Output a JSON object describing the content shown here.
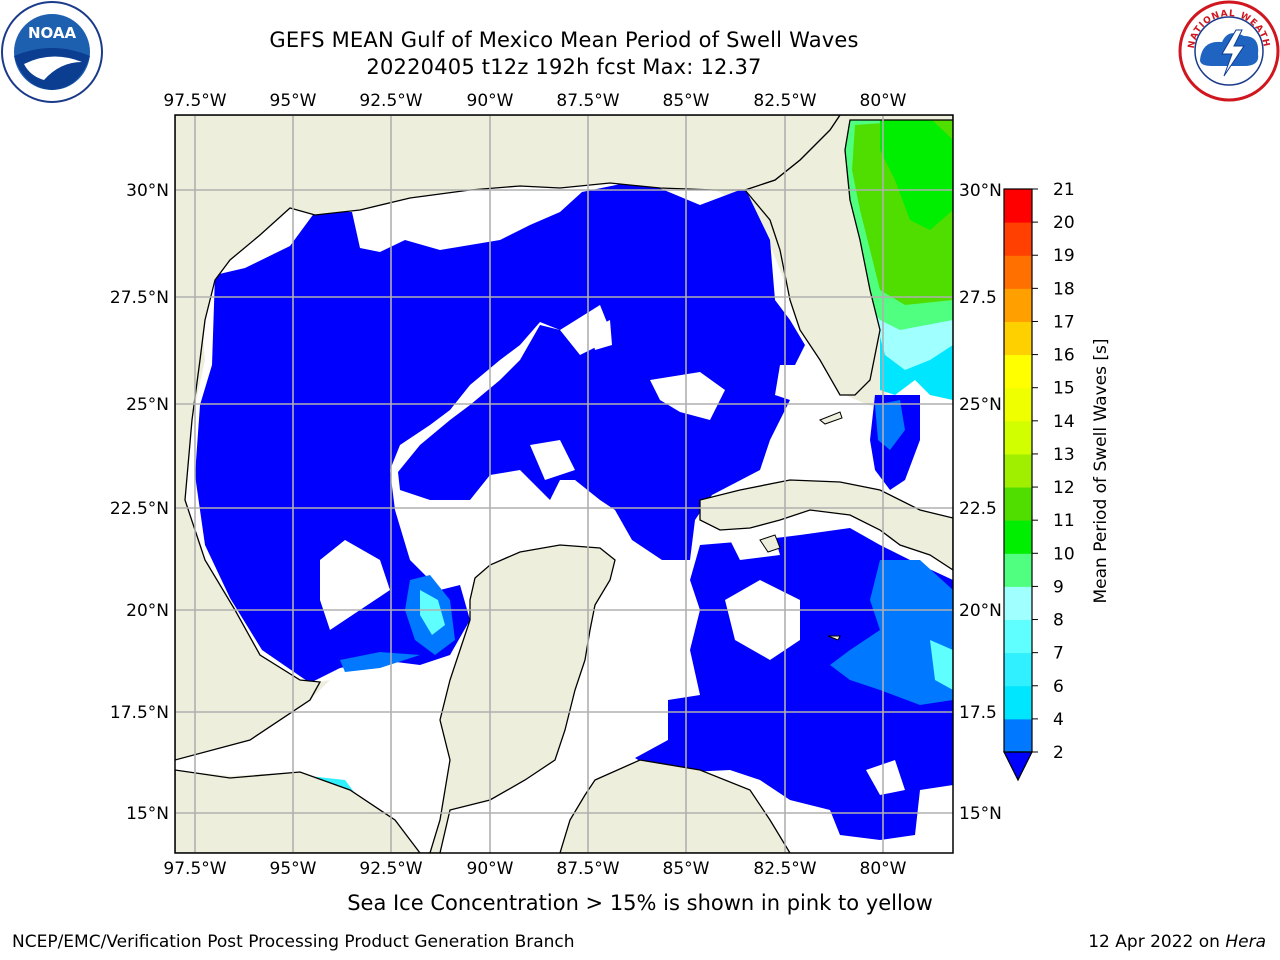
{
  "header": {
    "title_line1": "GEFS MEAN Gulf of Mexico Mean Period of Swell Waves",
    "title_line2": "20220405 t12z 192h fcst   Max: 12.37"
  },
  "logos": {
    "left": {
      "name": "noaa-logo",
      "text": "NOAA",
      "ring_text": "NATIONAL OCEANIC AND ATMOSPHERIC ADMINISTRATION · U.S. DEPARTMENT OF COMMERCE"
    },
    "right": {
      "name": "nws-logo",
      "ring_text": "NATIONAL WEATHER SERVICE"
    }
  },
  "map": {
    "region": "Gulf of Mexico",
    "lon_labels": [
      "97.5°W",
      "95°W",
      "92.5°W",
      "90°W",
      "87.5°W",
      "85°W",
      "82.5°W",
      "80°W"
    ],
    "lat_labels": [
      "30°N",
      "27.5°N",
      "25°N",
      "22.5°N",
      "20°N",
      "17.5°N",
      "15°N"
    ],
    "lat_labels_right": [
      "30°N",
      "27.5",
      "25°N",
      "22.5",
      "20°N",
      "17.5",
      "15°N"
    ],
    "colors": {
      "land": "#eeeedc",
      "ocean_no_swell": "#ffffff",
      "grid": "#b0b0b0",
      "coast": "#000000"
    }
  },
  "colorbar": {
    "label": "Mean Period of Swell Waves [s]",
    "ticks": [
      "2",
      "4",
      "6",
      "7",
      "8",
      "9",
      "10",
      "11",
      "12",
      "13",
      "14",
      "15",
      "16",
      "17",
      "18",
      "19",
      "20",
      "21"
    ],
    "colors": [
      "#0000ff",
      "#0078ff",
      "#00e6ff",
      "#30f0ff",
      "#60ffff",
      "#a0ffff",
      "#50ff80",
      "#00ee00",
      "#50dd00",
      "#a0ee00",
      "#d2ff00",
      "#f0ff00",
      "#ffff00",
      "#ffd000",
      "#ffa000",
      "#ff7000",
      "#ff4000",
      "#ff0000"
    ],
    "extend": "min"
  },
  "footer": {
    "note": "Sea Ice Concentration > 15% is shown in pink to yellow",
    "left": "NCEP/EMC/Verification Post Processing Product Generation Branch",
    "right_prefix": "12 Apr 2022 on ",
    "right_host": "Hera"
  }
}
